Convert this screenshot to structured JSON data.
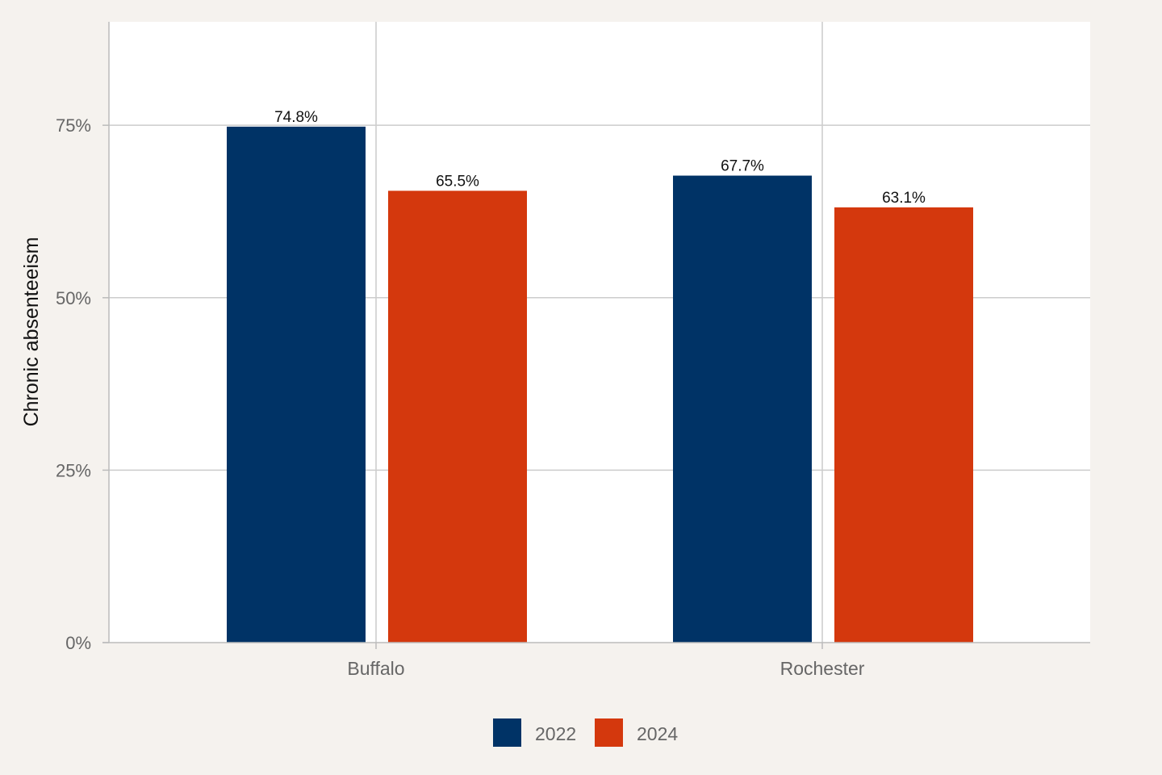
{
  "chart_data": {
    "type": "bar",
    "title": "",
    "xlabel": "",
    "ylabel": "Chronic absenteeism",
    "categories": [
      "Buffalo",
      "Rochester"
    ],
    "series": [
      {
        "name": "2022",
        "values": [
          74.8,
          67.7
        ],
        "labels": [
          "74.8%",
          "67.7%"
        ],
        "color": "#003366"
      },
      {
        "name": "2024",
        "values": [
          65.5,
          63.1
        ],
        "labels": [
          "65.5%",
          "63.1%"
        ],
        "color": "#d4380d"
      }
    ],
    "ylim": [
      0,
      90
    ],
    "yticks": [
      0,
      25,
      50,
      75
    ],
    "ytick_labels": [
      "0%",
      "25%",
      "50%",
      "75%"
    ],
    "grid": true,
    "legend_position": "bottom",
    "plot_background": "#ffffff",
    "page_background": "#f5f2ee"
  }
}
